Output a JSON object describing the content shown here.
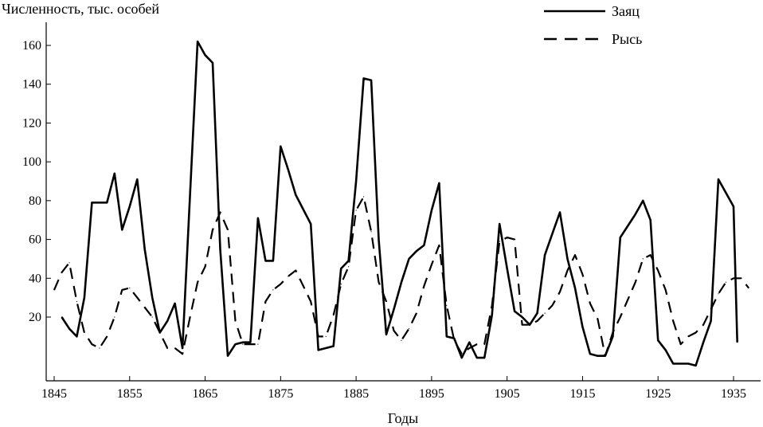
{
  "chart_data": {
    "type": "line",
    "title": "",
    "ylabel": "Численность, тыс. особей",
    "xlabel": "Годы",
    "xlim": [
      1845,
      1938
    ],
    "ylim": [
      -10,
      170
    ],
    "x_ticks": [
      1845,
      1855,
      1865,
      1875,
      1885,
      1895,
      1905,
      1915,
      1925,
      1935
    ],
    "y_ticks": [
      20,
      40,
      60,
      80,
      100,
      120,
      140,
      160
    ],
    "grid": false,
    "legend_position": "top-right",
    "series": [
      {
        "name": "Заяц",
        "style": "solid",
        "points": [
          [
            1846,
            20
          ],
          [
            1847,
            14
          ],
          [
            1848,
            10
          ],
          [
            1849,
            30
          ],
          [
            1850,
            79
          ],
          [
            1851,
            79
          ],
          [
            1852,
            79
          ],
          [
            1853,
            94
          ],
          [
            1854,
            65
          ],
          [
            1855,
            77
          ],
          [
            1856,
            91
          ],
          [
            1857,
            55
          ],
          [
            1858,
            30
          ],
          [
            1859,
            12
          ],
          [
            1860,
            18
          ],
          [
            1861,
            27
          ],
          [
            1862,
            4
          ],
          [
            1864,
            162
          ],
          [
            1865,
            155
          ],
          [
            1866,
            151
          ],
          [
            1867,
            55
          ],
          [
            1868,
            0
          ],
          [
            1869,
            6
          ],
          [
            1870,
            7
          ],
          [
            1871,
            7
          ],
          [
            1872,
            71
          ],
          [
            1873,
            49
          ],
          [
            1874,
            49
          ],
          [
            1875,
            108
          ],
          [
            1876,
            96
          ],
          [
            1877,
            83
          ],
          [
            1879,
            68
          ],
          [
            1880,
            3
          ],
          [
            1882,
            5
          ],
          [
            1883,
            45
          ],
          [
            1884,
            49
          ],
          [
            1885,
            90
          ],
          [
            1886,
            143
          ],
          [
            1887,
            142
          ],
          [
            1888,
            60
          ],
          [
            1889,
            11
          ],
          [
            1890,
            24
          ],
          [
            1891,
            38
          ],
          [
            1892,
            50
          ],
          [
            1893,
            54
          ],
          [
            1894,
            57
          ],
          [
            1895,
            75
          ],
          [
            1896,
            89
          ],
          [
            1897,
            10
          ],
          [
            1898,
            9
          ],
          [
            1899,
            -1
          ],
          [
            1900,
            7
          ],
          [
            1901,
            -1
          ],
          [
            1902,
            -1
          ],
          [
            1903,
            21
          ],
          [
            1904,
            68
          ],
          [
            1905,
            45
          ],
          [
            1906,
            23
          ],
          [
            1907,
            20
          ],
          [
            1908,
            16
          ],
          [
            1909,
            22
          ],
          [
            1910,
            52
          ],
          [
            1911,
            63
          ],
          [
            1912,
            74
          ],
          [
            1913,
            50
          ],
          [
            1914,
            35
          ],
          [
            1915,
            15
          ],
          [
            1916,
            1
          ],
          [
            1917,
            0
          ],
          [
            1918,
            0
          ],
          [
            1919,
            10
          ],
          [
            1920,
            61
          ],
          [
            1921,
            67
          ],
          [
            1922,
            73
          ],
          [
            1923,
            80
          ],
          [
            1924,
            70
          ],
          [
            1925,
            8
          ],
          [
            1926,
            3
          ],
          [
            1927,
            -4
          ],
          [
            1929,
            -4
          ],
          [
            1930,
            -5
          ],
          [
            1931,
            7
          ],
          [
            1932,
            18
          ],
          [
            1933,
            91
          ],
          [
            1934,
            84
          ],
          [
            1935,
            77
          ],
          [
            1935.5,
            7
          ]
        ]
      },
      {
        "name": "Рысь",
        "style": "dashed",
        "points": [
          [
            1845,
            34
          ],
          [
            1846,
            43
          ],
          [
            1847,
            48
          ],
          [
            1848,
            28
          ],
          [
            1849,
            12
          ],
          [
            1850,
            6
          ],
          [
            1851,
            4
          ],
          [
            1852,
            10
          ],
          [
            1853,
            20
          ],
          [
            1854,
            34
          ],
          [
            1855,
            35
          ],
          [
            1856,
            30
          ],
          [
            1857,
            25
          ],
          [
            1858,
            20
          ],
          [
            1859,
            12
          ],
          [
            1860,
            4
          ],
          [
            1861,
            4
          ],
          [
            1862,
            1
          ],
          [
            1863,
            20
          ],
          [
            1864,
            38
          ],
          [
            1865,
            46
          ],
          [
            1866,
            65
          ],
          [
            1867,
            74
          ],
          [
            1868,
            65
          ],
          [
            1869,
            18
          ],
          [
            1870,
            6
          ],
          [
            1871,
            6
          ],
          [
            1872,
            6
          ],
          [
            1873,
            28
          ],
          [
            1874,
            34
          ],
          [
            1875,
            37
          ],
          [
            1876,
            41
          ],
          [
            1877,
            44
          ],
          [
            1878,
            36
          ],
          [
            1879,
            28
          ],
          [
            1880,
            10
          ],
          [
            1881,
            10
          ],
          [
            1882,
            21
          ],
          [
            1883,
            37
          ],
          [
            1884,
            46
          ],
          [
            1885,
            75
          ],
          [
            1886,
            82
          ],
          [
            1887,
            64
          ],
          [
            1888,
            38
          ],
          [
            1889,
            28
          ],
          [
            1890,
            13
          ],
          [
            1891,
            8
          ],
          [
            1892,
            14
          ],
          [
            1893,
            22
          ],
          [
            1894,
            36
          ],
          [
            1895,
            47
          ],
          [
            1896,
            57
          ],
          [
            1897,
            26
          ],
          [
            1898,
            8
          ],
          [
            1899,
            1
          ],
          [
            1900,
            4
          ],
          [
            1901,
            6
          ],
          [
            1902,
            6
          ],
          [
            1903,
            26
          ],
          [
            1904,
            59
          ],
          [
            1905,
            61
          ],
          [
            1906,
            60
          ],
          [
            1907,
            16
          ],
          [
            1908,
            16
          ],
          [
            1909,
            18
          ],
          [
            1910,
            22
          ],
          [
            1911,
            26
          ],
          [
            1912,
            33
          ],
          [
            1913,
            44
          ],
          [
            1914,
            52
          ],
          [
            1915,
            42
          ],
          [
            1916,
            27
          ],
          [
            1917,
            19
          ],
          [
            1918,
            0
          ],
          [
            1919,
            12
          ],
          [
            1920,
            20
          ],
          [
            1921,
            29
          ],
          [
            1922,
            38
          ],
          [
            1923,
            50
          ],
          [
            1924,
            52
          ],
          [
            1925,
            44
          ],
          [
            1926,
            34
          ],
          [
            1927,
            18
          ],
          [
            1928,
            6
          ],
          [
            1929,
            10
          ],
          [
            1930,
            12
          ],
          [
            1931,
            16
          ],
          [
            1932,
            24
          ],
          [
            1933,
            32
          ],
          [
            1934,
            38
          ],
          [
            1935,
            40
          ],
          [
            1936,
            40
          ],
          [
            1937,
            35
          ]
        ]
      }
    ]
  },
  "colors": {
    "line": "#000000",
    "background": "#ffffff"
  }
}
